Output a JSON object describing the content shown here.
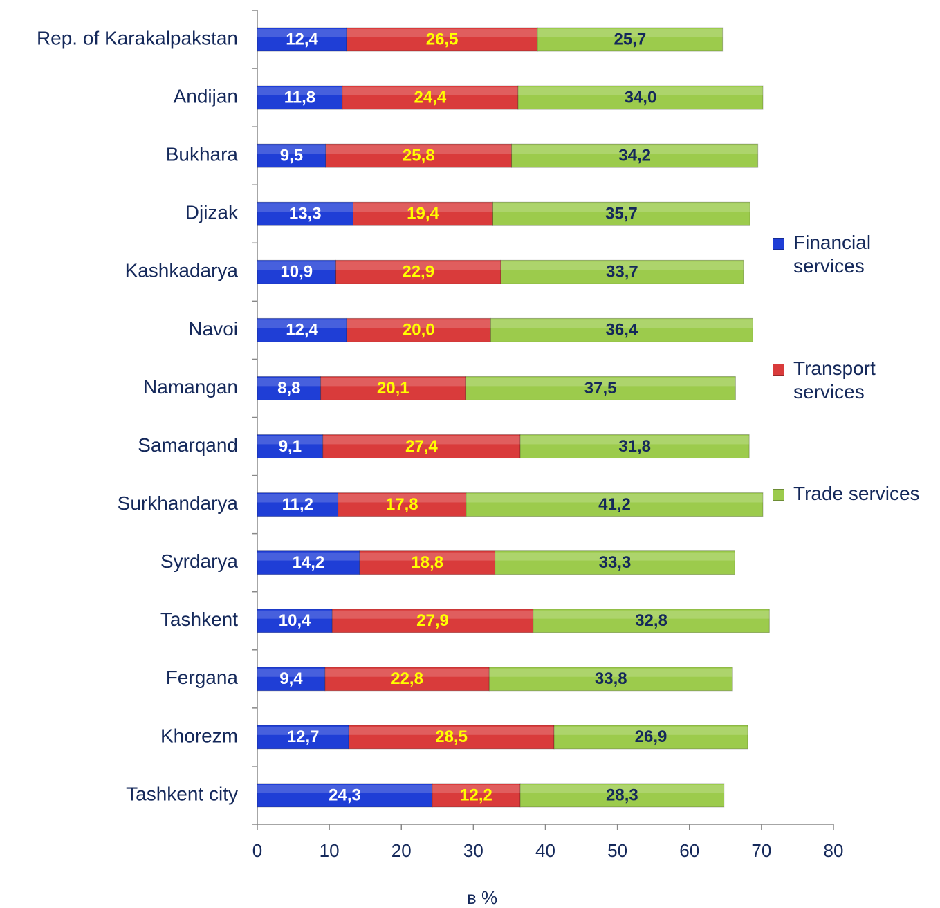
{
  "chart_data": {
    "type": "bar",
    "orientation": "horizontal",
    "stacked": true,
    "xlabel": "в %",
    "categories": [
      "Rep. of Karakalpakstan",
      "Andijan",
      "Bukhara",
      "Djizak",
      "Kashkadarya",
      "Navoi",
      "Namangan",
      "Samarqand",
      "Surkhandarya",
      "Syrdarya",
      "Tashkent",
      "Fergana",
      "Khorezm",
      "Tashkent city"
    ],
    "series": [
      {
        "name": "Financial services",
        "color": "#1f3ed6",
        "label_color": "#ffffff",
        "values": [
          12.4,
          11.8,
          9.5,
          13.3,
          10.9,
          12.4,
          8.8,
          9.1,
          11.2,
          14.2,
          10.4,
          9.4,
          12.7,
          24.3
        ],
        "value_labels": [
          "12,4",
          "11,8",
          "9,5",
          "13,3",
          "10,9",
          "12,4",
          "8,8",
          "9,1",
          "11,2",
          "14,2",
          "10,4",
          "9,4",
          "12,7",
          "24,3"
        ]
      },
      {
        "name": "Transport services",
        "color": "#d93b3b",
        "label_color": "#ffff00",
        "values": [
          26.5,
          24.4,
          25.8,
          19.4,
          22.9,
          20.0,
          20.1,
          27.4,
          17.8,
          18.8,
          27.9,
          22.8,
          28.5,
          12.2
        ],
        "value_labels": [
          "26,5",
          "24,4",
          "25,8",
          "19,4",
          "22,9",
          "20,0",
          "20,1",
          "27,4",
          "17,8",
          "18,8",
          "27,9",
          "22,8",
          "28,5",
          "12,2"
        ]
      },
      {
        "name": "Trade services",
        "color": "#9ccb4c",
        "label_color": "#14285a",
        "values": [
          25.7,
          34.0,
          34.2,
          35.7,
          33.7,
          36.4,
          37.5,
          31.8,
          41.2,
          33.3,
          32.8,
          33.8,
          26.9,
          28.3
        ],
        "value_labels": [
          "25,7",
          "34,0",
          "34,2",
          "35,7",
          "33,7",
          "36,4",
          "37,5",
          "31,8",
          "41,2",
          "33,3",
          "32,8",
          "33,8",
          "26,9",
          "28,3"
        ]
      }
    ],
    "xlim": [
      0,
      80
    ],
    "xticks": [
      0,
      10,
      20,
      30,
      40,
      50,
      60,
      70,
      80
    ],
    "grid": false,
    "legend": "right"
  }
}
